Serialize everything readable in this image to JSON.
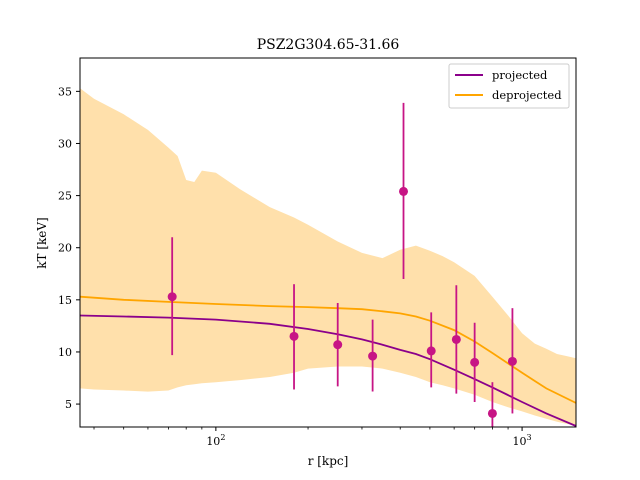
{
  "chart_data": {
    "type": "line",
    "title": "PSZ2G304.65-31.66",
    "xlabel": "r [kpc]",
    "ylabel": "kT [keV]",
    "xscale": "log",
    "xlim": [
      36,
      1500
    ],
    "ylim": [
      2.8,
      38.2
    ],
    "grid": false,
    "legend_position": "top-right",
    "x_tick_labels": [
      {
        "value": 100,
        "base": "10",
        "exp": "2"
      },
      {
        "value": 1000,
        "base": "10",
        "exp": "3"
      }
    ],
    "y_ticks": [
      5,
      10,
      15,
      20,
      25,
      30,
      35
    ],
    "series": [
      {
        "name": "projected",
        "type": "line",
        "color": "#8b008b",
        "x": [
          36,
          50,
          70,
          100,
          150,
          200,
          250,
          300,
          350,
          400,
          450,
          500,
          600,
          700,
          800,
          1000,
          1200,
          1500
        ],
        "y": [
          13.5,
          13.4,
          13.3,
          13.1,
          12.7,
          12.2,
          11.7,
          11.2,
          10.7,
          10.2,
          9.8,
          9.3,
          8.3,
          7.4,
          6.6,
          5.2,
          4.1,
          2.9
        ]
      },
      {
        "name": "deprojected",
        "type": "line",
        "color": "#ffa500",
        "band_color": "#ffe0ab",
        "x": [
          36,
          50,
          70,
          100,
          150,
          200,
          250,
          300,
          350,
          400,
          450,
          500,
          600,
          700,
          800,
          1000,
          1200,
          1500
        ],
        "y": [
          15.3,
          15.0,
          14.8,
          14.6,
          14.4,
          14.3,
          14.2,
          14.1,
          13.9,
          13.7,
          13.4,
          13.0,
          12.1,
          11.0,
          9.9,
          8.0,
          6.5,
          5.1
        ],
        "band_x": [
          36,
          40,
          50,
          60,
          70,
          75,
          80,
          85,
          90,
          100,
          120,
          150,
          180,
          200,
          250,
          300,
          350,
          400,
          450,
          500,
          550,
          600,
          700,
          800,
          900,
          1000,
          1100,
          1200,
          1300,
          1400,
          1500
        ],
        "band_upper": [
          35.3,
          34.3,
          32.8,
          31.3,
          29.6,
          28.8,
          26.5,
          26.3,
          27.4,
          27.2,
          25.6,
          23.9,
          22.9,
          22.2,
          20.6,
          19.5,
          19.0,
          19.8,
          20.2,
          19.7,
          19.2,
          18.6,
          17.3,
          15.3,
          13.5,
          11.8,
          10.8,
          10.3,
          9.8,
          9.6,
          9.4
        ],
        "band_lower": [
          6.5,
          6.4,
          6.3,
          6.2,
          6.3,
          6.6,
          6.8,
          6.9,
          7.0,
          7.1,
          7.3,
          7.6,
          8.0,
          8.4,
          8.6,
          8.6,
          8.4,
          8.0,
          7.6,
          7.1,
          6.8,
          6.5,
          5.9,
          5.2,
          4.7,
          4.3,
          3.9,
          3.6,
          3.3,
          3.1,
          2.9
        ]
      },
      {
        "name": "data",
        "type": "errorbar",
        "color": "#c71585",
        "x": [
          72,
          180,
          250,
          325,
          410,
          505,
          610,
          700,
          800,
          930
        ],
        "y": [
          15.3,
          11.5,
          10.7,
          9.6,
          25.4,
          10.1,
          11.2,
          9.0,
          4.1,
          9.1
        ],
        "yerr_low": [
          5.6,
          5.1,
          4.0,
          3.4,
          8.4,
          3.5,
          5.2,
          3.8,
          3.1,
          5.0
        ],
        "yerr_high": [
          5.7,
          5.0,
          4.0,
          3.5,
          8.5,
          3.7,
          5.2,
          3.8,
          3.0,
          5.1
        ]
      }
    ]
  }
}
